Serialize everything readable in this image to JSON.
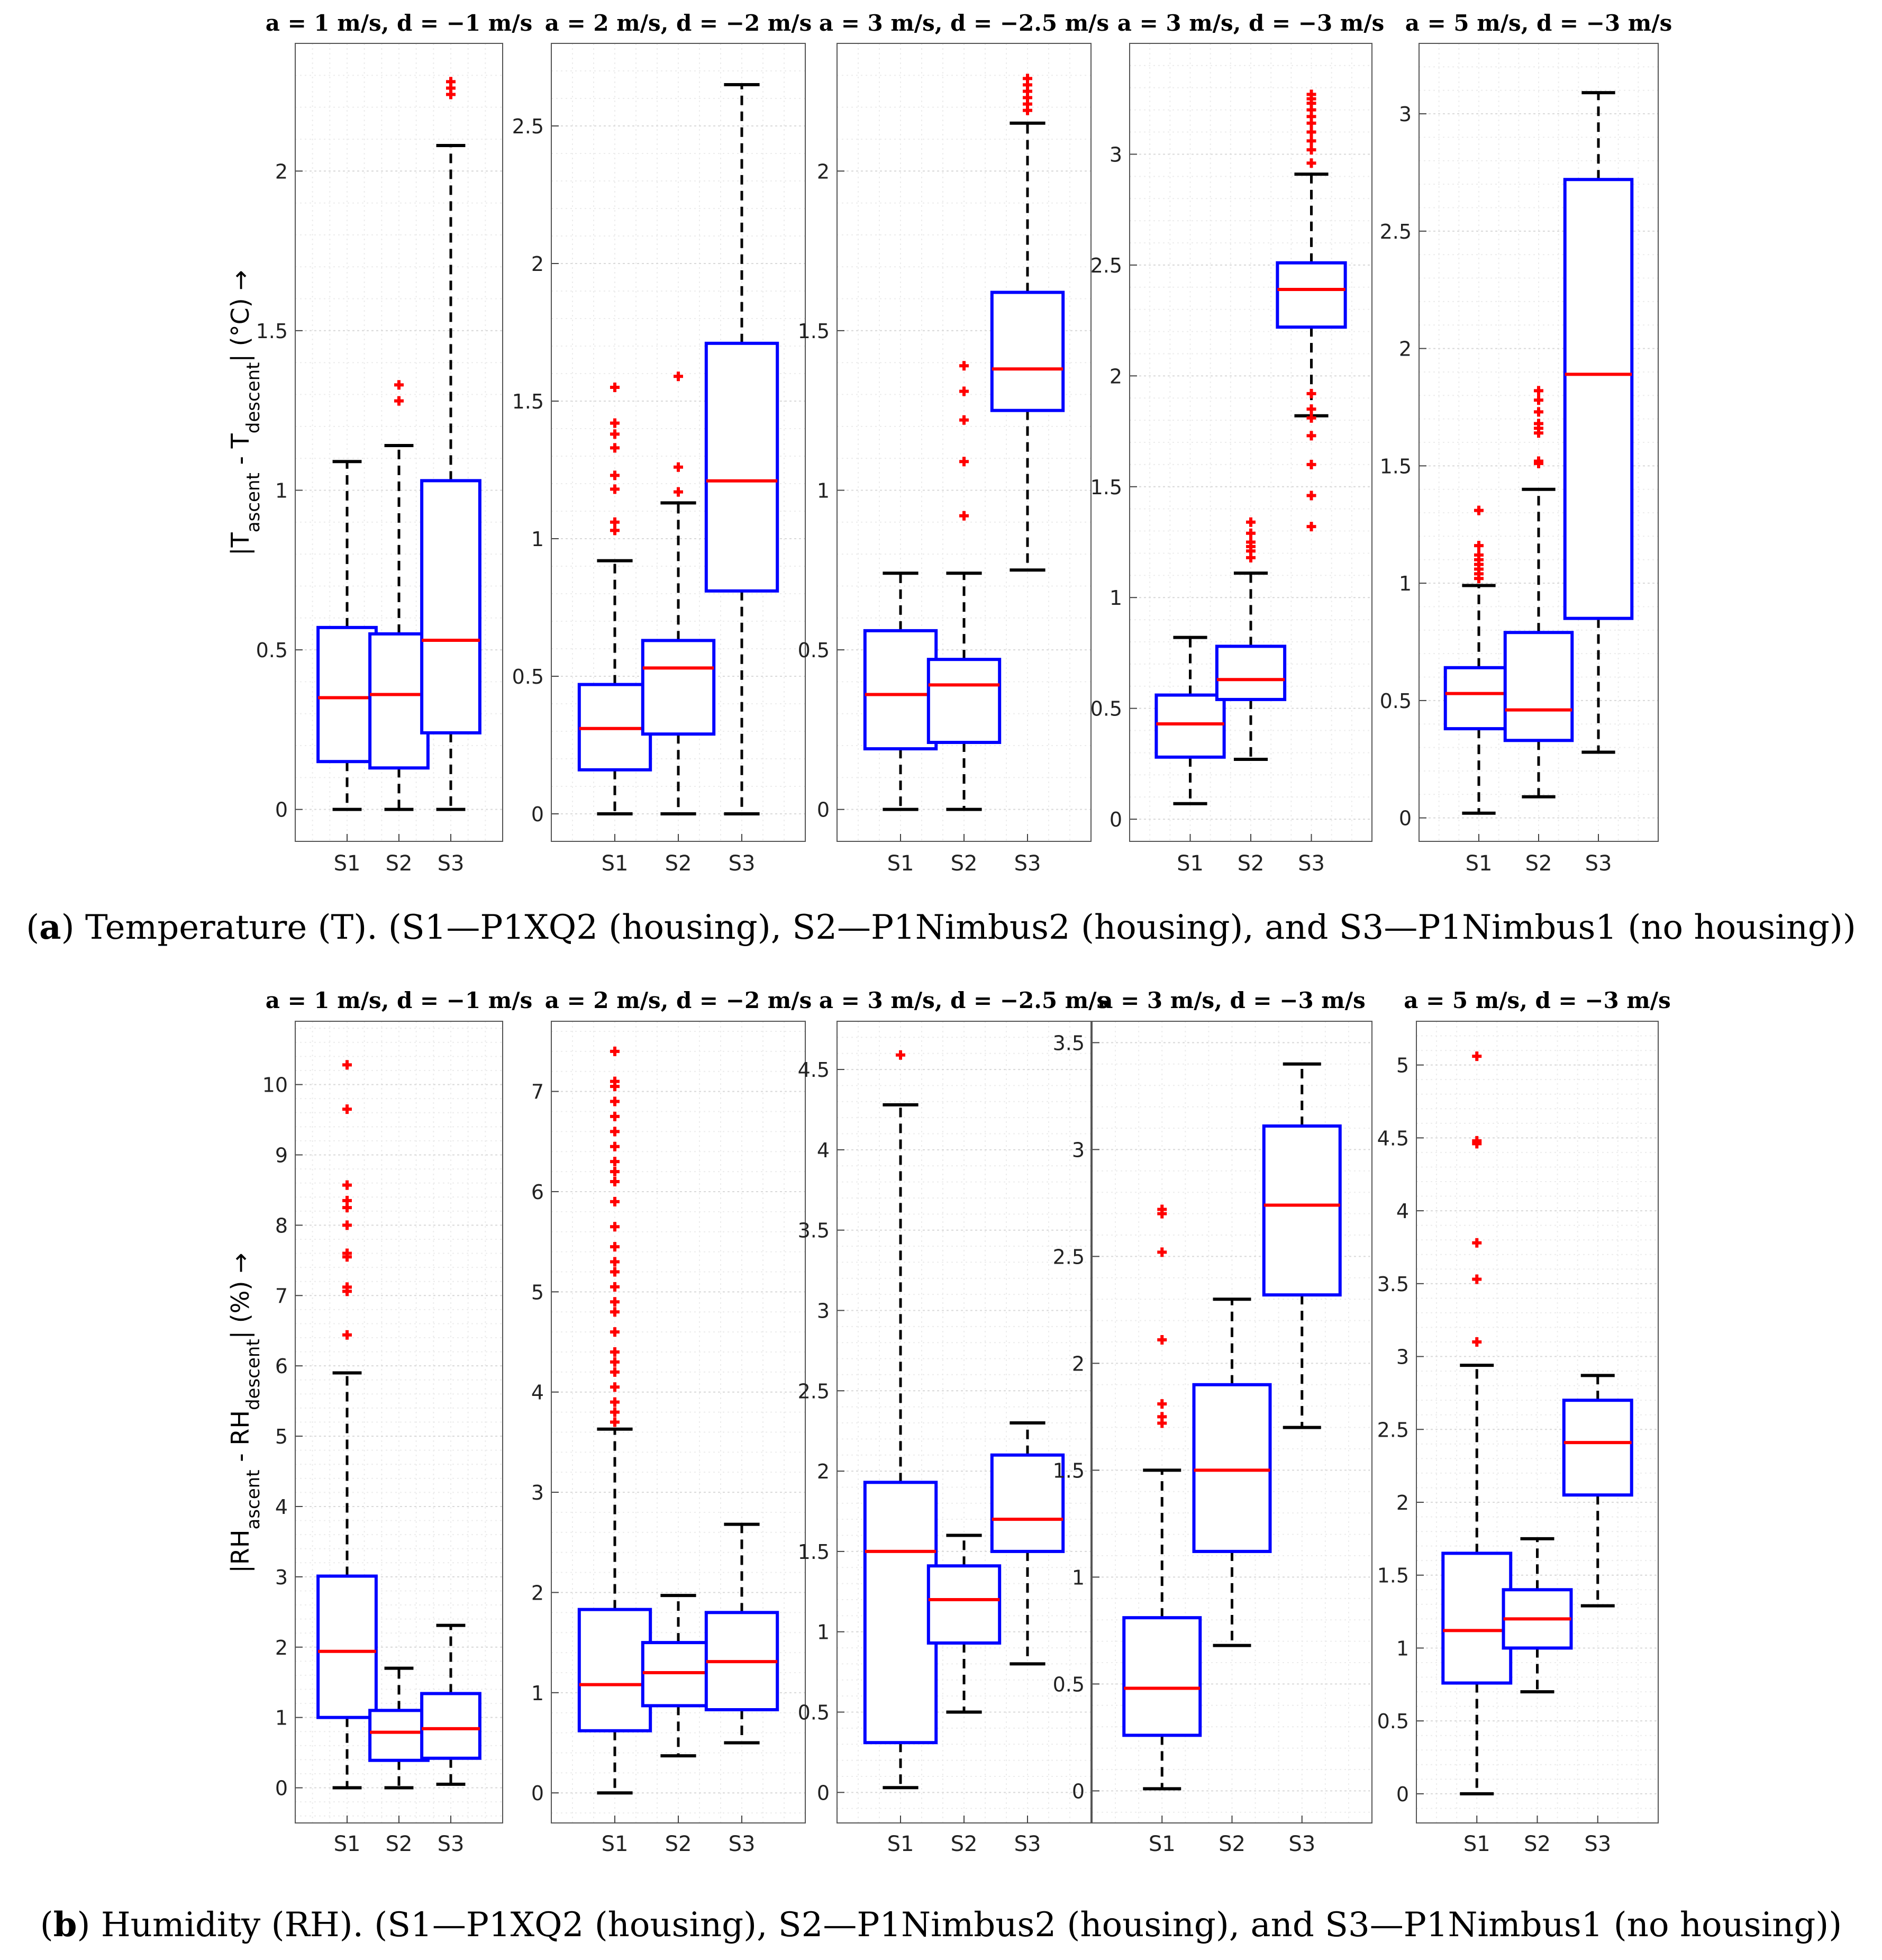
{
  "figure": {
    "caption_a_label": "a",
    "caption_a_text": ") Temperature (T). (S1—P1XQ2 (housing), S2—P1Nimbus2 (housing), and S3—P1Nimbus1 (no housing))",
    "caption_b_label": "b",
    "caption_b_text": ") Humidity (RH). (S1—P1XQ2 (housing), S2—P1Nimbus2 (housing), and S3—P1Nimbus1 (no housing))"
  },
  "colors": {
    "box": "#0000ff",
    "median": "#ff0000",
    "whisker": "#000000",
    "outlier": "#ff0000",
    "grid": "#d9d9d9"
  },
  "chart_data": [
    {
      "type": "box",
      "row": "a",
      "ylabel_main": "|T",
      "ylabel_sub1": "ascent",
      "ylabel_mid": " - T",
      "ylabel_sub2": "descent",
      "ylabel_end": "| (°C) →",
      "categories": [
        "S1",
        "S2",
        "S3"
      ],
      "panels": [
        {
          "title": "a = 1 m/s, d = −1 m/s",
          "ylim": [
            -0.1,
            2.4
          ],
          "ticks": [
            0,
            0.5,
            1,
            1.5,
            2
          ],
          "tick_labels": [
            "0",
            "0.5",
            "1",
            "1.5",
            "2"
          ],
          "boxes": [
            {
              "lo": 0,
              "q1": 0.15,
              "med": 0.35,
              "q3": 0.57,
              "hi": 1.09,
              "out": []
            },
            {
              "lo": 0,
              "q1": 0.13,
              "med": 0.36,
              "q3": 0.55,
              "hi": 1.14,
              "out": [
                1.28,
                1.33
              ]
            },
            {
              "lo": 0,
              "q1": 0.24,
              "med": 0.53,
              "q3": 1.03,
              "hi": 2.08,
              "out": [
                2.24,
                2.26,
                2.28
              ]
            }
          ]
        },
        {
          "title": "a = 2 m/s, d = −2 m/s",
          "ylim": [
            -0.1,
            2.8
          ],
          "ticks": [
            0,
            0.5,
            1,
            1.5,
            2,
            2.5
          ],
          "tick_labels": [
            "0",
            "0.5",
            "1",
            "1.5",
            "2",
            "2.5"
          ],
          "boxes": [
            {
              "lo": 0,
              "q1": 0.16,
              "med": 0.31,
              "q3": 0.47,
              "hi": 0.92,
              "out": [
                1.03,
                1.06,
                1.18,
                1.23,
                1.33,
                1.38,
                1.42,
                1.55
              ]
            },
            {
              "lo": 0,
              "q1": 0.29,
              "med": 0.53,
              "q3": 0.63,
              "hi": 1.13,
              "out": [
                1.17,
                1.26,
                1.59
              ]
            },
            {
              "lo": 0,
              "q1": 0.81,
              "med": 1.21,
              "q3": 1.71,
              "hi": 2.65,
              "out": []
            }
          ]
        },
        {
          "title": "a = 3 m/s, d = −2.5 m/s",
          "ylim": [
            -0.1,
            2.4
          ],
          "ticks": [
            0,
            0.5,
            1,
            1.5,
            2
          ],
          "tick_labels": [
            "0",
            "0.5",
            "1",
            "1.5",
            "2"
          ],
          "boxes": [
            {
              "lo": 0,
              "q1": 0.19,
              "med": 0.36,
              "q3": 0.56,
              "hi": 0.74,
              "out": []
            },
            {
              "lo": 0,
              "q1": 0.21,
              "med": 0.39,
              "q3": 0.47,
              "hi": 0.74,
              "out": [
                0.92,
                1.09,
                1.22,
                1.31,
                1.39
              ]
            },
            {
              "lo": 0.75,
              "q1": 1.25,
              "med": 1.38,
              "q3": 1.62,
              "hi": 2.15,
              "out": [
                2.19,
                2.21,
                2.23,
                2.25,
                2.27,
                2.29
              ]
            }
          ]
        },
        {
          "title": "a = 3 m/s, d = −3 m/s",
          "ylim": [
            -0.1,
            3.5
          ],
          "ticks": [
            0,
            0.5,
            1,
            1.5,
            2,
            2.5,
            3
          ],
          "tick_labels": [
            "0",
            "0.5",
            "1",
            "1.5",
            "2",
            "2.5",
            "3"
          ],
          "boxes": [
            {
              "lo": 0.07,
              "q1": 0.28,
              "med": 0.43,
              "q3": 0.56,
              "hi": 0.82,
              "out": []
            },
            {
              "lo": 0.27,
              "q1": 0.54,
              "med": 0.63,
              "q3": 0.78,
              "hi": 1.11,
              "out": [
                1.18,
                1.21,
                1.23,
                1.25,
                1.29,
                1.34
              ]
            },
            {
              "lo": 1.82,
              "q1": 2.22,
              "med": 2.39,
              "q3": 2.51,
              "hi": 2.91,
              "out": [
                1.32,
                1.46,
                1.6,
                1.73,
                1.81,
                1.85,
                1.92,
                2.96,
                3.02,
                3.06,
                3.1,
                3.14,
                3.17,
                3.2,
                3.23,
                3.25,
                3.27
              ]
            }
          ]
        },
        {
          "title": "a = 5 m/s, d = −3 m/s",
          "ylim": [
            -0.1,
            3.3
          ],
          "ticks": [
            0,
            0.5,
            1,
            1.5,
            2,
            2.5,
            3
          ],
          "tick_labels": [
            "0",
            "0.5",
            "1",
            "1.5",
            "2",
            "2.5",
            "3"
          ],
          "boxes": [
            {
              "lo": 0.02,
              "q1": 0.38,
              "med": 0.53,
              "q3": 0.64,
              "hi": 0.99,
              "out": [
                1.02,
                1.04,
                1.06,
                1.08,
                1.1,
                1.12,
                1.16,
                1.31
              ]
            },
            {
              "lo": 0.09,
              "q1": 0.33,
              "med": 0.46,
              "q3": 0.79,
              "hi": 1.4,
              "out": [
                1.51,
                1.52,
                1.64,
                1.66,
                1.68,
                1.73,
                1.78,
                1.82
              ]
            },
            {
              "lo": 0.28,
              "q1": 0.85,
              "med": 1.89,
              "q3": 2.72,
              "hi": 3.09,
              "out": []
            }
          ]
        }
      ]
    },
    {
      "type": "box",
      "row": "b",
      "ylabel_main": "|RH",
      "ylabel_sub1": "ascent",
      "ylabel_mid": " - RH",
      "ylabel_sub2": "descent",
      "ylabel_end": "| (%) →",
      "categories": [
        "S1",
        "S2",
        "S3"
      ],
      "panels": [
        {
          "title": "a = 1 m/s, d = −1 m/s",
          "ylim": [
            -0.5,
            10.9
          ],
          "ticks": [
            0,
            1,
            2,
            3,
            4,
            5,
            6,
            7,
            8,
            9,
            10
          ],
          "tick_labels": [
            "0",
            "1",
            "2",
            "3",
            "4",
            "5",
            "6",
            "7",
            "8",
            "9",
            "10"
          ],
          "boxes": [
            {
              "lo": 0,
              "q1": 1.0,
              "med": 1.94,
              "q3": 3.01,
              "hi": 5.9,
              "out": [
                6.44,
                7.06,
                7.12,
                7.55,
                7.6,
                8.0,
                8.25,
                8.35,
                8.57,
                9.65,
                10.28
              ]
            },
            {
              "lo": 0,
              "q1": 0.39,
              "med": 0.79,
              "q3": 1.1,
              "hi": 1.7,
              "out": []
            },
            {
              "lo": 0.05,
              "q1": 0.42,
              "med": 0.84,
              "q3": 1.34,
              "hi": 2.31,
              "out": []
            }
          ]
        },
        {
          "title": "a = 2 m/s, d = −2 m/s",
          "ylim": [
            -0.3,
            7.7
          ],
          "ticks": [
            0,
            1,
            2,
            3,
            4,
            5,
            6,
            7
          ],
          "tick_labels": [
            "0",
            "1",
            "2",
            "3",
            "4",
            "5",
            "6",
            "7"
          ],
          "boxes": [
            {
              "lo": 0,
              "q1": 0.62,
              "med": 1.08,
              "q3": 1.83,
              "hi": 3.63,
              "out": [
                3.7,
                3.8,
                3.9,
                4.05,
                4.2,
                4.3,
                4.4,
                4.6,
                4.8,
                4.9,
                5.05,
                5.2,
                5.3,
                5.45,
                5.65,
                5.9,
                6.1,
                6.2,
                6.3,
                6.45,
                6.6,
                6.75,
                6.9,
                7.05,
                7.1,
                7.4
              ]
            },
            {
              "lo": 0.37,
              "q1": 0.87,
              "med": 1.2,
              "q3": 1.5,
              "hi": 1.97,
              "out": []
            },
            {
              "lo": 0.5,
              "q1": 0.83,
              "med": 1.31,
              "q3": 1.8,
              "hi": 2.68,
              "out": []
            }
          ]
        },
        {
          "title": "a = 3 m/s, d = −2.5 m/s",
          "ylim": [
            -0.19,
            4.8
          ],
          "ticks": [
            0,
            0.5,
            1,
            1.5,
            2,
            2.5,
            3,
            3.5,
            4,
            4.5
          ],
          "tick_labels": [
            "0",
            "0.5",
            "1",
            "1.5",
            "2",
            "2.5",
            "3",
            "3.5",
            "4",
            "4.5"
          ],
          "boxes": [
            {
              "lo": 0.03,
              "q1": 0.31,
              "med": 1.5,
              "q3": 1.93,
              "hi": 4.28,
              "out": [
                4.59
              ]
            },
            {
              "lo": 0.5,
              "q1": 0.93,
              "med": 1.2,
              "q3": 1.41,
              "hi": 1.6,
              "out": []
            },
            {
              "lo": 0.8,
              "q1": 1.5,
              "med": 1.7,
              "q3": 2.1,
              "hi": 2.3,
              "out": []
            }
          ]
        },
        {
          "title": "a = 3 m/s, d = −3 m/s",
          "ylim": [
            -0.15,
            3.6
          ],
          "ticks": [
            0,
            0.5,
            1,
            1.5,
            2,
            2.5,
            3,
            3.5
          ],
          "tick_labels": [
            "0",
            "0.5",
            "1",
            "1.5",
            "2",
            "2.5",
            "3",
            "3.5"
          ],
          "boxes": [
            {
              "lo": 0.01,
              "q1": 0.26,
              "med": 0.48,
              "q3": 0.81,
              "hi": 1.5,
              "out": [
                1.72,
                1.75,
                1.81,
                2.11,
                2.52,
                2.7,
                2.72
              ]
            },
            {
              "lo": 0.68,
              "q1": 1.12,
              "med": 1.5,
              "q3": 1.9,
              "hi": 2.3,
              "out": []
            },
            {
              "lo": 1.7,
              "q1": 2.32,
              "med": 2.74,
              "q3": 3.11,
              "hi": 3.4,
              "out": []
            }
          ]
        },
        {
          "title": "a = 5 m/s, d = −3 m/s",
          "ylim": [
            -0.2,
            5.3
          ],
          "ticks": [
            0,
            0.5,
            1,
            1.5,
            2,
            2.5,
            3,
            3.5,
            4,
            4.5,
            5
          ],
          "tick_labels": [
            "0",
            "0.5",
            "1",
            "1.5",
            "2",
            "2.5",
            "3",
            "3.5",
            "4",
            "4.5",
            "5"
          ],
          "boxes": [
            {
              "lo": 0,
              "q1": 0.76,
              "med": 1.12,
              "q3": 1.65,
              "hi": 2.94,
              "out": [
                3.1,
                3.53,
                3.78,
                4.46,
                4.48,
                5.06
              ]
            },
            {
              "lo": 0.7,
              "q1": 1.0,
              "med": 1.2,
              "q3": 1.4,
              "hi": 1.75,
              "out": []
            },
            {
              "lo": 1.29,
              "q1": 2.05,
              "med": 2.41,
              "q3": 2.7,
              "hi": 2.87,
              "out": []
            }
          ]
        }
      ]
    }
  ]
}
